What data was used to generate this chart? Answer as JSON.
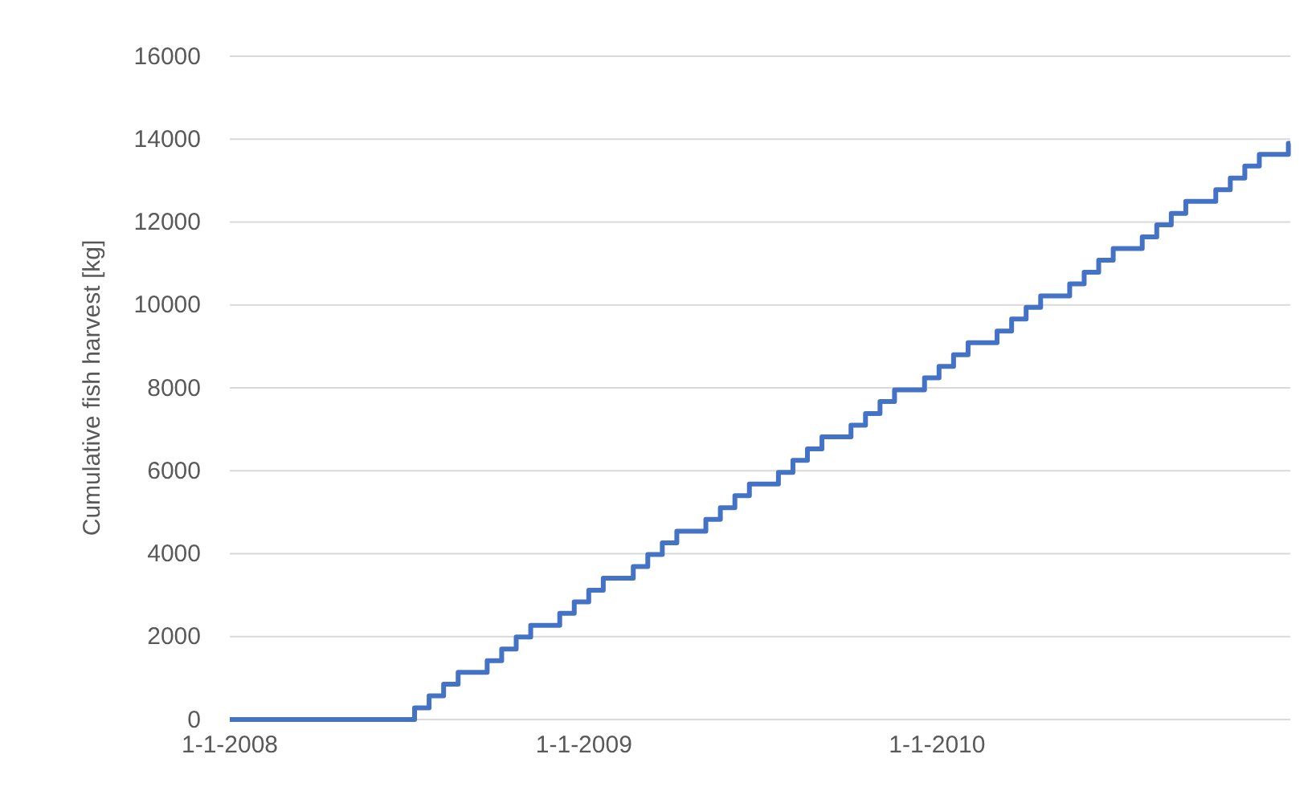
{
  "chart_data": {
    "type": "step",
    "ylabel": "Cumulative fish harvest [kg]",
    "x": [
      "2008-01-01",
      "2008-07-10",
      "2008-07-25",
      "2008-08-09",
      "2008-08-24",
      "2008-09-23",
      "2008-10-08",
      "2008-10-23",
      "2008-11-07",
      "2008-12-07",
      "2008-12-22",
      "2009-01-06",
      "2009-01-21",
      "2009-02-21",
      "2009-03-08",
      "2009-03-23",
      "2009-04-07",
      "2009-05-07",
      "2009-05-22",
      "2009-06-06",
      "2009-06-21",
      "2009-07-21",
      "2009-08-05",
      "2009-08-20",
      "2009-09-04",
      "2009-10-04",
      "2009-10-19",
      "2009-11-03",
      "2009-11-18",
      "2009-12-19",
      "2010-01-03",
      "2010-01-18",
      "2010-02-02",
      "2010-03-04",
      "2010-03-19",
      "2010-04-03",
      "2010-04-18",
      "2010-05-18",
      "2010-06-02",
      "2010-06-17",
      "2010-07-02",
      "2010-08-01",
      "2010-08-16",
      "2010-08-31",
      "2010-09-15",
      "2010-10-16",
      "2010-10-31",
      "2010-11-15",
      "2010-11-30",
      "2010-12-30",
      "2011-01-01"
    ],
    "series": [
      {
        "color": "#4472c4",
        "values": [
          0,
          280,
          570,
          850,
          1140,
          1420,
          1700,
          1990,
          2270,
          2560,
          2840,
          3120,
          3410,
          3690,
          3980,
          4260,
          4540,
          4830,
          5110,
          5400,
          5680,
          5960,
          6250,
          6530,
          6820,
          7100,
          7380,
          7670,
          7950,
          8240,
          8520,
          8800,
          9090,
          9370,
          9660,
          9940,
          10220,
          10510,
          10790,
          11080,
          11360,
          11640,
          11930,
          12210,
          12500,
          12780,
          13060,
          13350,
          13630,
          13900,
          13900
        ]
      }
    ],
    "xlim": [
      "2008-01-01",
      "2011-01-01"
    ],
    "xticks": [
      {
        "value": "2008-01-01",
        "label": "1-1-2008"
      },
      {
        "value": "2009-01-01",
        "label": "1-1-2009"
      },
      {
        "value": "2010-01-01",
        "label": "1-1-2010"
      }
    ],
    "ylim": [
      0,
      16000
    ],
    "yticks": [
      0,
      2000,
      4000,
      6000,
      8000,
      10000,
      12000,
      14000,
      16000
    ],
    "grid": "y",
    "line_style": "solid",
    "marker": "none"
  }
}
